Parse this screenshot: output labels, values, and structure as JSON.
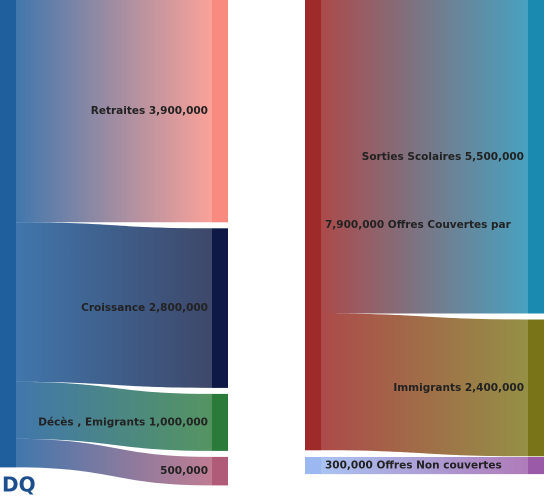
{
  "chart_data": {
    "type": "sankey",
    "logo": "DQ",
    "panels": [
      {
        "source": {
          "color": "#1f5f9e"
        },
        "flows": [
          {
            "label": "Retraites 3,900,000",
            "value": 3900000,
            "color": "#f98a7f"
          },
          {
            "label": "Croissance 2,800,000",
            "value": 2800000,
            "color": "#0e1a45"
          },
          {
            "label": "Décès , Emigrants 1,000,000",
            "value": 1000000,
            "color": "#2a7a3a"
          },
          {
            "label": "500,000",
            "value": 500000,
            "color": "#b05c78"
          }
        ]
      },
      {
        "source": {
          "label": "7,900,000 Offres Couvertes par",
          "value": 7900000,
          "color": "#9e2a2a"
        },
        "flows": [
          {
            "label": "Sorties Scolaires 5,500,000",
            "value": 5500000,
            "color": "#1a8ab0"
          },
          {
            "label": "Immigrants 2,400,000",
            "value": 2400000,
            "color": "#7a7418"
          }
        ]
      },
      {
        "source": {
          "label": "300,000 Offres Non couvertes",
          "value": 300000,
          "color": "#9bb8f0"
        },
        "flows": [
          {
            "value": 300000,
            "color": "#9b5aa8"
          }
        ]
      }
    ]
  }
}
